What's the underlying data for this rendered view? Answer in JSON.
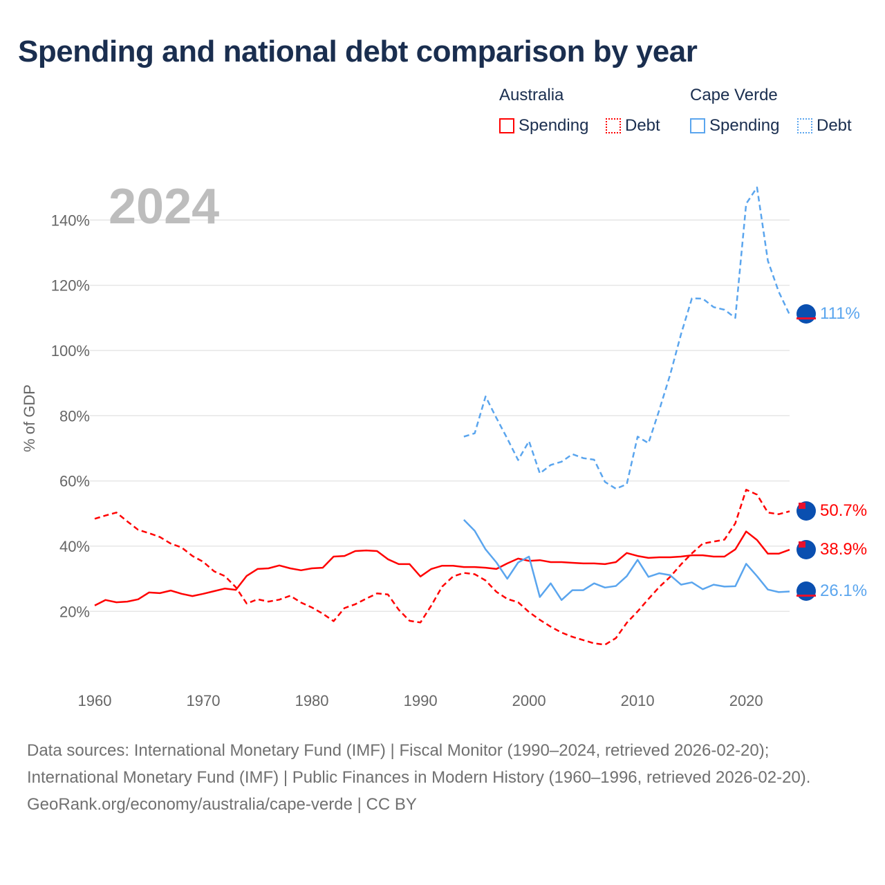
{
  "title": "Spending and national debt comparison by year",
  "legend": {
    "groups": [
      {
        "name": "Australia",
        "items": [
          "Spending",
          "Debt"
        ],
        "color": "#ff0000"
      },
      {
        "name": "Cape Verde",
        "items": [
          "Spending",
          "Debt"
        ],
        "color": "#5aa5ee"
      }
    ]
  },
  "footer": {
    "sources": "Data sources: International Monetary Fund (IMF) | Fiscal Monitor (1990–2024, retrieved 2026-02-20); International Monetary Fund (IMF) | Public Finances in Modern History (1960–1996, retrieved 2026-02-20).",
    "credit": "GeoRank.org/economy/australia/cape-verde | CC BY"
  },
  "chart_data": {
    "type": "line",
    "title": "Spending and national debt comparison by year",
    "year_label": "2024",
    "xlabel": "",
    "ylabel": "% of GDP",
    "xlim": [
      1960,
      2024
    ],
    "ylim": [
      0,
      150
    ],
    "x_ticks": [
      1960,
      1970,
      1980,
      1990,
      2000,
      2010,
      2020
    ],
    "y_ticks": [
      20,
      40,
      60,
      80,
      100,
      120,
      140
    ],
    "y_tick_labels": [
      "20%",
      "40%",
      "60%",
      "80%",
      "100%",
      "120%",
      "140%"
    ],
    "grid": true,
    "legend_position": "top-right",
    "series": [
      {
        "name": "Australia Spending",
        "color": "#ff0000",
        "dash": false,
        "start": 1960,
        "end_label": "38.9%",
        "values": [
          21.8,
          23.5,
          22.8,
          23,
          23.7,
          25.8,
          25.6,
          26.4,
          25.4,
          24.7,
          25.4,
          26.2,
          27,
          26.6,
          30.9,
          33,
          33.2,
          34.1,
          33.2,
          32.6,
          33.2,
          33.4,
          36.8,
          37,
          38.5,
          38.7,
          38.5,
          36,
          34.5,
          34.5,
          30.7,
          33,
          34,
          34,
          33.6,
          33.6,
          33.4,
          33,
          34.7,
          36.2,
          35.5,
          35.7,
          35.1,
          35.1,
          34.9,
          34.7,
          34.7,
          34.5,
          35.1,
          37.9,
          37,
          36.4,
          36.6,
          36.6,
          36.8,
          37.2,
          37.2,
          36.8,
          36.8,
          39,
          44.5,
          41.9,
          37.7,
          37.7,
          38.9
        ]
      },
      {
        "name": "Australia Debt",
        "color": "#ff0000",
        "dash": true,
        "start": 1960,
        "end_label": "50.7%",
        "values": [
          48.4,
          49.4,
          50.3,
          47.6,
          45,
          44,
          42.8,
          40.8,
          39.6,
          37,
          35.2,
          32.3,
          30.8,
          27.4,
          22.4,
          23.7,
          23,
          23.6,
          24.8,
          22.7,
          21.2,
          19.3,
          17,
          21,
          22.2,
          23.9,
          25.5,
          25.2,
          20.5,
          17.1,
          16.6,
          21.8,
          27.6,
          30.7,
          31.8,
          31.4,
          29.5,
          26,
          23.8,
          22.8,
          19.8,
          17.4,
          15.3,
          13.5,
          12.2,
          11.2,
          10.2,
          9.8,
          11.8,
          16.5,
          20,
          23.8,
          27.5,
          30.6,
          34.4,
          37.8,
          40.8,
          41.4,
          42,
          47,
          57.3,
          55.8,
          50.3,
          49.8,
          50.7
        ]
      },
      {
        "name": "Cape Verde Spending",
        "color": "#5aa5ee",
        "dash": false,
        "start": 1994,
        "end_label": "26.1%",
        "values": [
          48.1,
          44.7,
          39,
          35,
          30,
          35,
          36.8,
          24.4,
          28.6,
          23.5,
          26.5,
          26.5,
          28.6,
          27.3,
          27.8,
          30.8,
          35.8,
          30.6,
          31.7,
          31.1,
          28.2,
          28.9,
          26.8,
          28.2,
          27.6,
          27.7,
          34.6,
          30.8,
          26.7,
          25.9,
          26.1
        ]
      },
      {
        "name": "Cape Verde Debt",
        "color": "#5aa5ee",
        "dash": true,
        "start": 1994,
        "end_label": "111%",
        "values": [
          73.6,
          74.6,
          85.9,
          79.3,
          73,
          66.4,
          72.2,
          62.3,
          64.9,
          65.9,
          68.2,
          67,
          66.5,
          59.7,
          57.6,
          59,
          73.6,
          71.6,
          81.8,
          92.6,
          105,
          116,
          115.9,
          113.3,
          112.5,
          110,
          145,
          150,
          127.5,
          118,
          111
        ]
      }
    ]
  }
}
